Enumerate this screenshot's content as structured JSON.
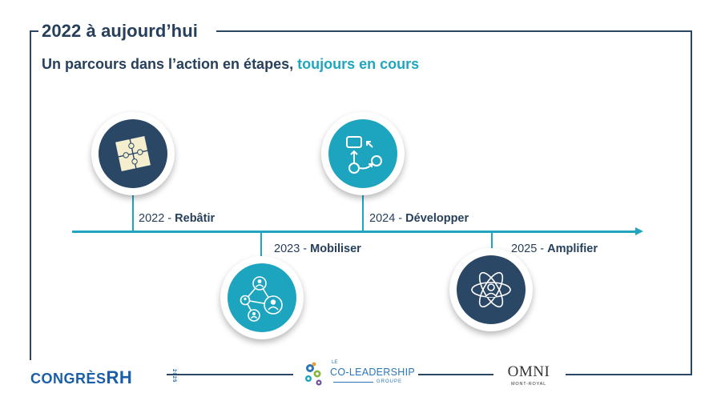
{
  "header": {
    "title": "2022 à aujourd’hui",
    "subtitle_main": "Un parcours dans l’action en étapes, ",
    "subtitle_accent": "toujours en cours"
  },
  "timeline": {
    "milestones": [
      {
        "year": "2022 - ",
        "label": "Rebâtir",
        "icon": "puzzle-icon"
      },
      {
        "year": "2023 - ",
        "label": "Mobiliser",
        "icon": "people-network-icon"
      },
      {
        "year": "2024 - ",
        "label": "Développer",
        "icon": "workflow-icon"
      },
      {
        "year": "2025 - ",
        "label": "Amplifier",
        "icon": "atom-person-icon"
      }
    ]
  },
  "footer": {
    "congres": "CONGRÈS",
    "rh": "RH",
    "year": "2025",
    "colead_le": "LE",
    "colead_name": "CO-LEADERSHIP",
    "colead_groupe": "GROUPE",
    "omni": "OMNI",
    "omni_sub": "MONT-ROYAL"
  },
  "colors": {
    "navy": "#263f5b",
    "teal": "#1fa6bf",
    "circle_navy": "#2a4766",
    "circle_teal": "#1da5c0"
  }
}
